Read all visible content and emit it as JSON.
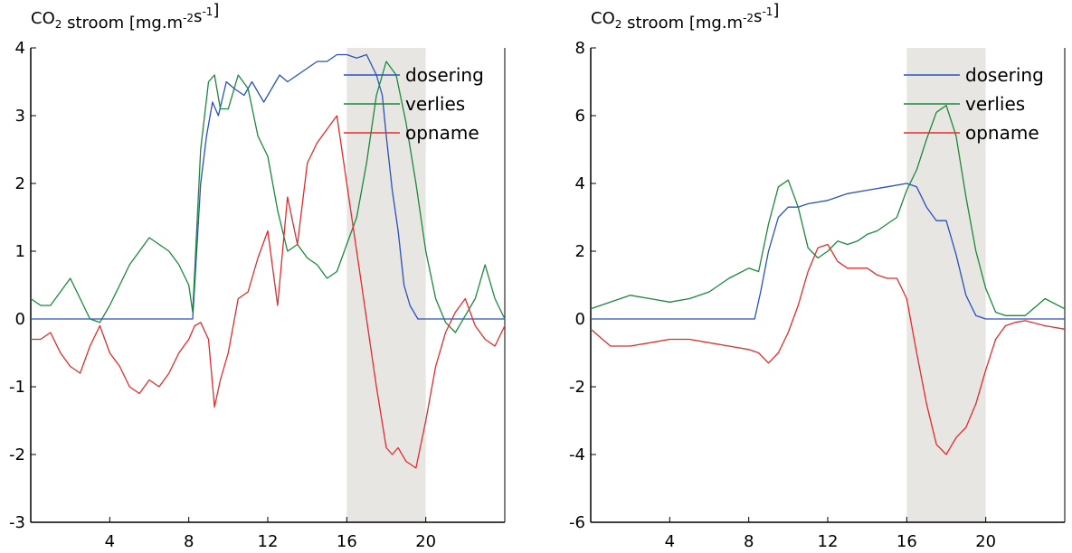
{
  "chart_data": [
    {
      "type": "line",
      "title_prefix": "CO",
      "title_sub": "2",
      "title_rest": " stroom [mg.m",
      "title_sup1": "-2",
      "title_mid": "s",
      "title_sup2": "-1",
      "title_end": "]",
      "xlim": [
        0,
        24
      ],
      "ylim": [
        -3,
        4
      ],
      "xticks": [
        4,
        8,
        12,
        16,
        20
      ],
      "yticks": [
        -3,
        -2,
        -1,
        0,
        1,
        2,
        3,
        4
      ],
      "shaded_x": [
        16,
        20
      ],
      "legend_position": "top-right",
      "series": [
        {
          "name": "dosering",
          "color": "#2a52be",
          "x": [
            0,
            8.2,
            8.6,
            8.9,
            9.2,
            9.5,
            9.9,
            10.3,
            10.8,
            11.2,
            11.8,
            12.2,
            12.6,
            13.0,
            13.5,
            14.0,
            14.5,
            15.0,
            15.5,
            16.0,
            16.5,
            17.0,
            17.5,
            17.8,
            18.0,
            18.3,
            18.6,
            18.9,
            19.2,
            19.6,
            24
          ],
          "values": [
            0,
            0,
            2.0,
            2.7,
            3.2,
            3.0,
            3.5,
            3.4,
            3.3,
            3.5,
            3.2,
            3.4,
            3.6,
            3.5,
            3.6,
            3.7,
            3.8,
            3.8,
            3.9,
            3.9,
            3.85,
            3.9,
            3.6,
            3.3,
            2.7,
            1.9,
            1.3,
            0.5,
            0.2,
            0,
            0
          ]
        },
        {
          "name": "verlies",
          "color": "#1a8a3a",
          "x": [
            0,
            0.5,
            1.0,
            1.5,
            2.0,
            2.5,
            3.0,
            3.5,
            4.0,
            4.5,
            5.0,
            5.5,
            6.0,
            6.5,
            7.0,
            7.5,
            8.0,
            8.2,
            8.6,
            9.0,
            9.3,
            9.6,
            10.0,
            10.5,
            11.0,
            11.5,
            12.0,
            12.5,
            13.0,
            13.5,
            14.0,
            14.5,
            15.0,
            15.5,
            16.0,
            16.5,
            17.0,
            17.5,
            18.0,
            18.5,
            19.0,
            19.5,
            20.0,
            20.5,
            21.0,
            21.5,
            22.0,
            22.5,
            23.0,
            23.5,
            24
          ],
          "values": [
            0.3,
            0.2,
            0.2,
            0.4,
            0.6,
            0.3,
            0.0,
            -0.05,
            0.2,
            0.5,
            0.8,
            1.0,
            1.2,
            1.1,
            1.0,
            0.8,
            0.5,
            0.1,
            2.5,
            3.5,
            3.6,
            3.1,
            3.1,
            3.6,
            3.4,
            2.7,
            2.4,
            1.6,
            1.0,
            1.1,
            0.9,
            0.8,
            0.6,
            0.7,
            1.1,
            1.5,
            2.3,
            3.3,
            3.8,
            3.6,
            2.9,
            2.0,
            1.0,
            0.3,
            -0.05,
            -0.2,
            0.05,
            0.3,
            0.8,
            0.3,
            0.0
          ]
        },
        {
          "name": "opname",
          "color": "#e52b2b",
          "x": [
            0,
            0.5,
            1.0,
            1.5,
            2.0,
            2.5,
            3.0,
            3.5,
            4.0,
            4.5,
            5.0,
            5.5,
            6.0,
            6.5,
            7.0,
            7.5,
            8.0,
            8.3,
            8.6,
            9.0,
            9.3,
            9.6,
            10.0,
            10.5,
            11.0,
            11.5,
            12.0,
            12.5,
            13.0,
            13.5,
            14.0,
            14.5,
            15.0,
            15.5,
            16.0,
            16.5,
            17.0,
            17.5,
            18.0,
            18.3,
            18.6,
            19.0,
            19.5,
            20.0,
            20.5,
            21.0,
            21.5,
            22.0,
            22.5,
            23.0,
            23.5,
            24
          ],
          "values": [
            -0.3,
            -0.3,
            -0.2,
            -0.5,
            -0.7,
            -0.8,
            -0.4,
            -0.1,
            -0.5,
            -0.7,
            -1.0,
            -1.1,
            -0.9,
            -1.0,
            -0.8,
            -0.5,
            -0.3,
            -0.1,
            -0.05,
            -0.3,
            -1.3,
            -0.9,
            -0.5,
            0.3,
            0.4,
            0.9,
            1.3,
            0.2,
            1.8,
            1.1,
            2.3,
            2.6,
            2.8,
            3.0,
            2.0,
            1.0,
            0.0,
            -1.0,
            -1.9,
            -2.0,
            -1.9,
            -2.1,
            -2.2,
            -1.5,
            -0.7,
            -0.2,
            0.1,
            0.3,
            -0.1,
            -0.3,
            -0.4,
            -0.1
          ]
        }
      ]
    },
    {
      "type": "line",
      "title_prefix": "CO",
      "title_sub": "2",
      "title_rest": " stroom [mg.m",
      "title_sup1": "-2",
      "title_mid": "s",
      "title_sup2": "-1",
      "title_end": "]",
      "xlim": [
        0,
        24
      ],
      "ylim": [
        -6,
        8
      ],
      "xticks": [
        4,
        8,
        12,
        16,
        20
      ],
      "yticks": [
        -6,
        -4,
        -2,
        0,
        2,
        4,
        6,
        8
      ],
      "shaded_x": [
        16,
        20
      ],
      "legend_position": "top-right",
      "series": [
        {
          "name": "dosering",
          "color": "#2a52be",
          "x": [
            0,
            8.3,
            8.6,
            9.0,
            9.5,
            10.0,
            10.5,
            11.0,
            12.0,
            13.0,
            14.0,
            15.0,
            16.0,
            16.5,
            17.0,
            17.5,
            18.0,
            18.5,
            19.0,
            19.5,
            20.0,
            24
          ],
          "values": [
            0,
            0,
            0.8,
            2.0,
            3.0,
            3.3,
            3.3,
            3.4,
            3.5,
            3.7,
            3.8,
            3.9,
            4.0,
            3.9,
            3.3,
            2.9,
            2.9,
            1.9,
            0.7,
            0.1,
            0,
            0
          ]
        },
        {
          "name": "verlies",
          "color": "#1a8a3a",
          "x": [
            0,
            1,
            2,
            3,
            4,
            5,
            6,
            7,
            8,
            8.5,
            9.0,
            9.5,
            10.0,
            10.5,
            11.0,
            11.5,
            12.0,
            12.5,
            13.0,
            13.5,
            14.0,
            14.5,
            15.0,
            15.5,
            16.0,
            16.5,
            17.0,
            17.5,
            18.0,
            18.5,
            19.0,
            19.5,
            20.0,
            20.5,
            21.0,
            22.0,
            23.0,
            24
          ],
          "values": [
            0.3,
            0.5,
            0.7,
            0.6,
            0.5,
            0.6,
            0.8,
            1.2,
            1.5,
            1.4,
            2.8,
            3.9,
            4.1,
            3.3,
            2.1,
            1.8,
            2.0,
            2.3,
            2.2,
            2.3,
            2.5,
            2.6,
            2.8,
            3.0,
            3.8,
            4.4,
            5.3,
            6.1,
            6.3,
            5.4,
            3.6,
            2.0,
            0.9,
            0.2,
            0.1,
            0.1,
            0.6,
            0.3
          ]
        },
        {
          "name": "opname",
          "color": "#e52b2b",
          "x": [
            0,
            1,
            2,
            3,
            4,
            5,
            6,
            7,
            8,
            8.5,
            9.0,
            9.5,
            10.0,
            10.5,
            11.0,
            11.5,
            12.0,
            12.5,
            13.0,
            13.5,
            14.0,
            14.5,
            15.0,
            15.5,
            16.0,
            16.5,
            17.0,
            17.5,
            18.0,
            18.5,
            19.0,
            19.5,
            20.0,
            20.5,
            21.0,
            21.5,
            22.0,
            23.0,
            24
          ],
          "values": [
            -0.3,
            -0.8,
            -0.8,
            -0.7,
            -0.6,
            -0.6,
            -0.7,
            -0.8,
            -0.9,
            -1.0,
            -1.3,
            -1.0,
            -0.4,
            0.4,
            1.4,
            2.1,
            2.2,
            1.7,
            1.5,
            1.5,
            1.5,
            1.3,
            1.2,
            1.2,
            0.6,
            -1.0,
            -2.5,
            -3.7,
            -4.0,
            -3.5,
            -3.2,
            -2.5,
            -1.5,
            -0.6,
            -0.2,
            -0.1,
            -0.05,
            -0.2,
            -0.3
          ]
        }
      ]
    }
  ]
}
